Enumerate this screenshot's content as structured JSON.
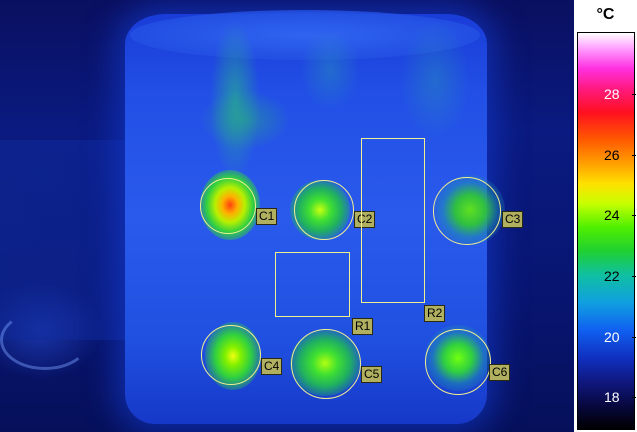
{
  "scale": {
    "unit": "°C",
    "ticks": [
      "28",
      "26",
      "24",
      "22",
      "20",
      "18"
    ]
  },
  "rois": {
    "circles": [
      "C1",
      "C2",
      "C3",
      "C4",
      "C5",
      "C6"
    ],
    "rects": [
      "R1",
      "R2"
    ]
  },
  "colors": {
    "roi_outline": "#f0f090",
    "roi_label_bg": "#b0b060"
  }
}
